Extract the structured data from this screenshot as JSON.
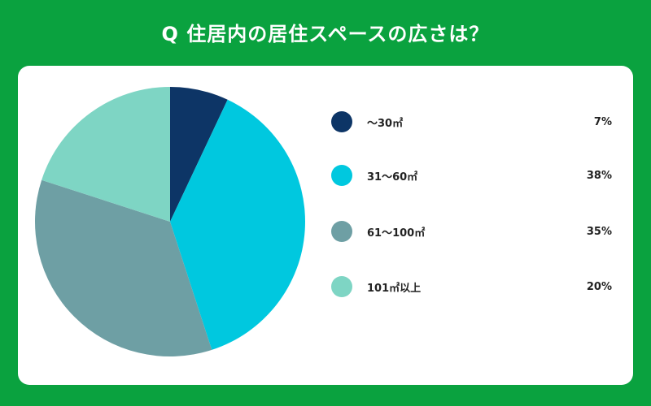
{
  "title": "Q 住居内の居住スペースの広さは？",
  "chart_data": {
    "type": "pie",
    "categories": [
      "〜30㎡",
      "31〜60㎡",
      "61〜100㎡",
      "101㎡以上"
    ],
    "values": [
      7,
      38,
      35,
      20
    ],
    "value_labels": [
      "7%",
      "38%",
      "35%",
      "20%"
    ],
    "colors": [
      "#0d3566",
      "#00c8df",
      "#6e9fa4",
      "#7ed5c4"
    ],
    "legend": "right"
  }
}
